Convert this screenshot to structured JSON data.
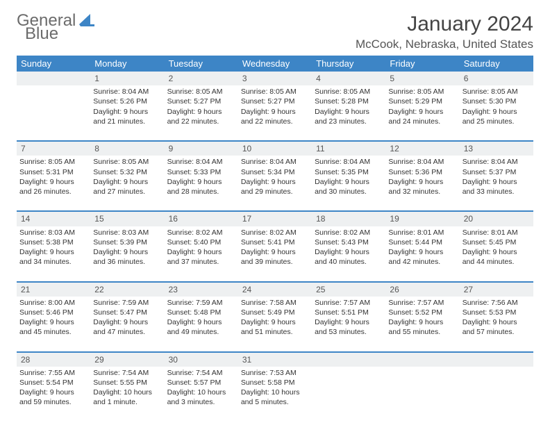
{
  "logo": {
    "part1": "General",
    "part2": "Blue"
  },
  "title": "January 2024",
  "location": "McCook, Nebraska, United States",
  "colors": {
    "header_bg": "#3d85c6",
    "header_fg": "#ffffff",
    "daynum_bg": "#eef0f1",
    "row_divider": "#3d85c6",
    "text": "#333333",
    "logo_gray": "#6b6b6b",
    "logo_blue": "#3d85c6"
  },
  "typography": {
    "title_fontsize": 30,
    "location_fontsize": 17,
    "dayhead_fontsize": 13,
    "cell_fontsize": 10.5,
    "logo_fontsize": 24
  },
  "days_of_week": [
    "Sunday",
    "Monday",
    "Tuesday",
    "Wednesday",
    "Thursday",
    "Friday",
    "Saturday"
  ],
  "weeks": [
    {
      "nums": [
        "",
        "1",
        "2",
        "3",
        "4",
        "5",
        "6"
      ],
      "cells": [
        null,
        {
          "sunrise": "8:04 AM",
          "sunset": "5:26 PM",
          "daylight": "9 hours and 21 minutes."
        },
        {
          "sunrise": "8:05 AM",
          "sunset": "5:27 PM",
          "daylight": "9 hours and 22 minutes."
        },
        {
          "sunrise": "8:05 AM",
          "sunset": "5:27 PM",
          "daylight": "9 hours and 22 minutes."
        },
        {
          "sunrise": "8:05 AM",
          "sunset": "5:28 PM",
          "daylight": "9 hours and 23 minutes."
        },
        {
          "sunrise": "8:05 AM",
          "sunset": "5:29 PM",
          "daylight": "9 hours and 24 minutes."
        },
        {
          "sunrise": "8:05 AM",
          "sunset": "5:30 PM",
          "daylight": "9 hours and 25 minutes."
        }
      ]
    },
    {
      "nums": [
        "7",
        "8",
        "9",
        "10",
        "11",
        "12",
        "13"
      ],
      "cells": [
        {
          "sunrise": "8:05 AM",
          "sunset": "5:31 PM",
          "daylight": "9 hours and 26 minutes."
        },
        {
          "sunrise": "8:05 AM",
          "sunset": "5:32 PM",
          "daylight": "9 hours and 27 minutes."
        },
        {
          "sunrise": "8:04 AM",
          "sunset": "5:33 PM",
          "daylight": "9 hours and 28 minutes."
        },
        {
          "sunrise": "8:04 AM",
          "sunset": "5:34 PM",
          "daylight": "9 hours and 29 minutes."
        },
        {
          "sunrise": "8:04 AM",
          "sunset": "5:35 PM",
          "daylight": "9 hours and 30 minutes."
        },
        {
          "sunrise": "8:04 AM",
          "sunset": "5:36 PM",
          "daylight": "9 hours and 32 minutes."
        },
        {
          "sunrise": "8:04 AM",
          "sunset": "5:37 PM",
          "daylight": "9 hours and 33 minutes."
        }
      ]
    },
    {
      "nums": [
        "14",
        "15",
        "16",
        "17",
        "18",
        "19",
        "20"
      ],
      "cells": [
        {
          "sunrise": "8:03 AM",
          "sunset": "5:38 PM",
          "daylight": "9 hours and 34 minutes."
        },
        {
          "sunrise": "8:03 AM",
          "sunset": "5:39 PM",
          "daylight": "9 hours and 36 minutes."
        },
        {
          "sunrise": "8:02 AM",
          "sunset": "5:40 PM",
          "daylight": "9 hours and 37 minutes."
        },
        {
          "sunrise": "8:02 AM",
          "sunset": "5:41 PM",
          "daylight": "9 hours and 39 minutes."
        },
        {
          "sunrise": "8:02 AM",
          "sunset": "5:43 PM",
          "daylight": "9 hours and 40 minutes."
        },
        {
          "sunrise": "8:01 AM",
          "sunset": "5:44 PM",
          "daylight": "9 hours and 42 minutes."
        },
        {
          "sunrise": "8:01 AM",
          "sunset": "5:45 PM",
          "daylight": "9 hours and 44 minutes."
        }
      ]
    },
    {
      "nums": [
        "21",
        "22",
        "23",
        "24",
        "25",
        "26",
        "27"
      ],
      "cells": [
        {
          "sunrise": "8:00 AM",
          "sunset": "5:46 PM",
          "daylight": "9 hours and 45 minutes."
        },
        {
          "sunrise": "7:59 AM",
          "sunset": "5:47 PM",
          "daylight": "9 hours and 47 minutes."
        },
        {
          "sunrise": "7:59 AM",
          "sunset": "5:48 PM",
          "daylight": "9 hours and 49 minutes."
        },
        {
          "sunrise": "7:58 AM",
          "sunset": "5:49 PM",
          "daylight": "9 hours and 51 minutes."
        },
        {
          "sunrise": "7:57 AM",
          "sunset": "5:51 PM",
          "daylight": "9 hours and 53 minutes."
        },
        {
          "sunrise": "7:57 AM",
          "sunset": "5:52 PM",
          "daylight": "9 hours and 55 minutes."
        },
        {
          "sunrise": "7:56 AM",
          "sunset": "5:53 PM",
          "daylight": "9 hours and 57 minutes."
        }
      ]
    },
    {
      "nums": [
        "28",
        "29",
        "30",
        "31",
        "",
        "",
        ""
      ],
      "cells": [
        {
          "sunrise": "7:55 AM",
          "sunset": "5:54 PM",
          "daylight": "9 hours and 59 minutes."
        },
        {
          "sunrise": "7:54 AM",
          "sunset": "5:55 PM",
          "daylight": "10 hours and 1 minute."
        },
        {
          "sunrise": "7:54 AM",
          "sunset": "5:57 PM",
          "daylight": "10 hours and 3 minutes."
        },
        {
          "sunrise": "7:53 AM",
          "sunset": "5:58 PM",
          "daylight": "10 hours and 5 minutes."
        },
        null,
        null,
        null
      ]
    }
  ],
  "labels": {
    "sunrise": "Sunrise:",
    "sunset": "Sunset:",
    "daylight": "Daylight:"
  }
}
